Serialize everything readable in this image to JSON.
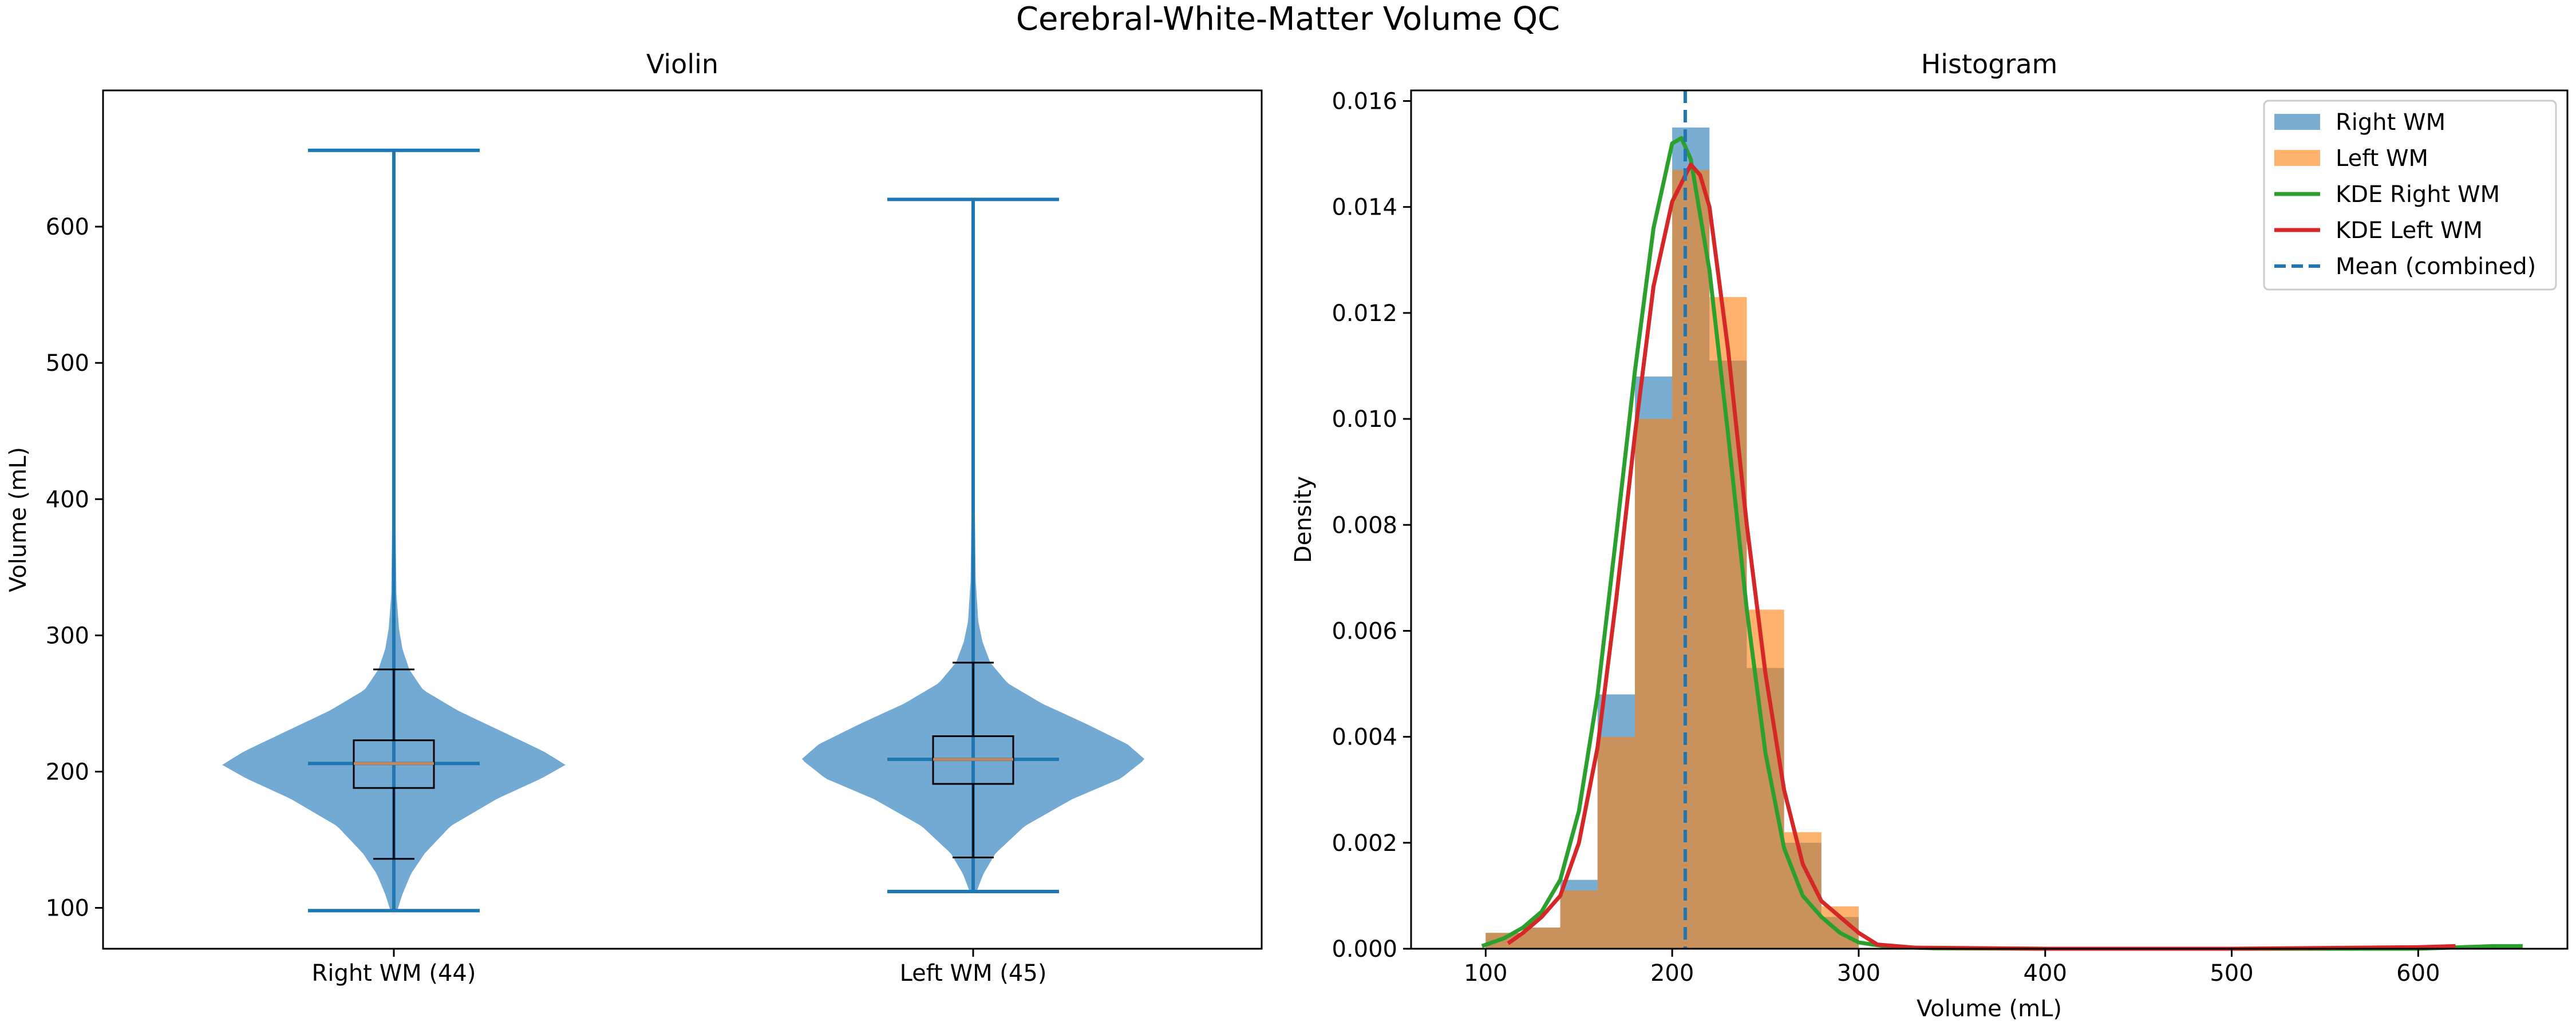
{
  "figure": {
    "title": "Cerebral-White-Matter Volume QC"
  },
  "colors": {
    "right": "#1f77b4",
    "right_fill": "#72aad3",
    "left": "#ff7f0e",
    "left_fill": "#fdaa60",
    "overlap_fill": "#c6884f",
    "kde_right": "#2ca02c",
    "kde_left": "#d62728",
    "mean": "#1f77b4",
    "median": "#c8875a"
  },
  "chart_data": [
    {
      "type": "violin",
      "title": "Violin",
      "ylabel": "Volume (mL)",
      "xlabel": "",
      "ylim": [
        70,
        700
      ],
      "yticks": [
        100,
        200,
        300,
        400,
        500,
        600
      ],
      "categories": [
        "Right WM (44)",
        "Left WM (45)"
      ],
      "groups": [
        {
          "name": "Right WM (44)",
          "min": 98,
          "max": 656,
          "mean": 206,
          "box": {
            "q1": 188,
            "median": 206,
            "q3": 223,
            "whisker_low": 136,
            "whisker_high": 275
          },
          "density": [
            [
              98,
              0.02
            ],
            [
              110,
              0.05
            ],
            [
              125,
              0.1
            ],
            [
              140,
              0.18
            ],
            [
              160,
              0.33
            ],
            [
              180,
              0.6
            ],
            [
              195,
              0.86
            ],
            [
              205,
              1.0
            ],
            [
              215,
              0.87
            ],
            [
              230,
              0.62
            ],
            [
              245,
              0.37
            ],
            [
              260,
              0.17
            ],
            [
              275,
              0.09
            ],
            [
              290,
              0.05
            ],
            [
              305,
              0.03
            ],
            [
              330,
              0.015
            ],
            [
              400,
              0.008
            ],
            [
              500,
              0.006
            ],
            [
              600,
              0.005
            ],
            [
              656,
              0.004
            ]
          ]
        },
        {
          "name": "Left WM (45)",
          "min": 112,
          "max": 620,
          "mean": 209,
          "box": {
            "q1": 191,
            "median": 209,
            "q3": 226,
            "whisker_low": 137,
            "whisker_high": 280
          },
          "density": [
            [
              112,
              0.02
            ],
            [
              125,
              0.06
            ],
            [
              140,
              0.13
            ],
            [
              160,
              0.3
            ],
            [
              180,
              0.58
            ],
            [
              195,
              0.86
            ],
            [
              209,
              1.0
            ],
            [
              220,
              0.9
            ],
            [
              235,
              0.66
            ],
            [
              250,
              0.4
            ],
            [
              265,
              0.2
            ],
            [
              280,
              0.1
            ],
            [
              295,
              0.055
            ],
            [
              310,
              0.03
            ],
            [
              340,
              0.015
            ],
            [
              400,
              0.009
            ],
            [
              500,
              0.006
            ],
            [
              620,
              0.004
            ]
          ]
        }
      ]
    },
    {
      "type": "histogram",
      "title": "Histogram",
      "xlabel": "Volume (mL)",
      "ylabel": "Density",
      "xlim": [
        60,
        680
      ],
      "ylim": [
        0,
        0.0162
      ],
      "xticks": [
        100,
        200,
        300,
        400,
        500,
        600
      ],
      "yticks": [
        0.0,
        0.002,
        0.004,
        0.006,
        0.008,
        0.01,
        0.012,
        0.014,
        0.016
      ],
      "legend_position": "top-right",
      "mean_combined": 207,
      "series": [
        {
          "name": "Right WM",
          "bin_edges": [
            100,
            120,
            140,
            160,
            180,
            200,
            220,
            240,
            260,
            280,
            300
          ],
          "densities": [
            0.0003,
            0.0004,
            0.0013,
            0.0048,
            0.0108,
            0.0155,
            0.0111,
            0.0053,
            0.002,
            0.0006
          ]
        },
        {
          "name": "Left WM",
          "bin_edges": [
            100,
            120,
            140,
            160,
            180,
            200,
            220,
            240,
            260,
            280,
            300
          ],
          "densities": [
            0.0003,
            0.0004,
            0.0011,
            0.004,
            0.01,
            0.0147,
            0.0123,
            0.0064,
            0.0022,
            0.0008
          ]
        },
        {
          "name": "KDE Right WM",
          "points": [
            [
              98,
              5e-05
            ],
            [
              110,
              0.0002
            ],
            [
              120,
              0.0004
            ],
            [
              130,
              0.0007
            ],
            [
              140,
              0.0013
            ],
            [
              150,
              0.0026
            ],
            [
              160,
              0.0048
            ],
            [
              170,
              0.0078
            ],
            [
              180,
              0.0109
            ],
            [
              190,
              0.0136
            ],
            [
              200,
              0.0152
            ],
            [
              205,
              0.0153
            ],
            [
              210,
              0.0149
            ],
            [
              220,
              0.0128
            ],
            [
              230,
              0.0097
            ],
            [
              240,
              0.0064
            ],
            [
              250,
              0.0037
            ],
            [
              260,
              0.0019
            ],
            [
              270,
              0.001
            ],
            [
              280,
              0.0006
            ],
            [
              290,
              0.0003
            ],
            [
              300,
              0.00012
            ],
            [
              315,
              4e-05
            ],
            [
              340,
              1e-05
            ],
            [
              400,
              0
            ],
            [
              500,
              0
            ],
            [
              600,
              0
            ],
            [
              640,
              5e-05
            ],
            [
              656,
              5e-05
            ]
          ]
        },
        {
          "name": "KDE Left WM",
          "points": [
            [
              112,
              0.0001
            ],
            [
              120,
              0.0003
            ],
            [
              130,
              0.0006
            ],
            [
              140,
              0.001
            ],
            [
              150,
              0.002
            ],
            [
              160,
              0.0038
            ],
            [
              170,
              0.0066
            ],
            [
              180,
              0.0097
            ],
            [
              190,
              0.0125
            ],
            [
              200,
              0.0141
            ],
            [
              210,
              0.0148
            ],
            [
              215,
              0.0146
            ],
            [
              220,
              0.014
            ],
            [
              230,
              0.0113
            ],
            [
              240,
              0.008
            ],
            [
              250,
              0.0052
            ],
            [
              260,
              0.003
            ],
            [
              270,
              0.0016
            ],
            [
              280,
              0.0009
            ],
            [
              290,
              0.0006
            ],
            [
              300,
              0.0003
            ],
            [
              310,
              8e-05
            ],
            [
              330,
              2e-05
            ],
            [
              400,
              0
            ],
            [
              500,
              0
            ],
            [
              600,
              3e-05
            ],
            [
              620,
              5e-05
            ]
          ]
        },
        {
          "name": "Mean (combined)",
          "x": 207
        }
      ]
    }
  ]
}
